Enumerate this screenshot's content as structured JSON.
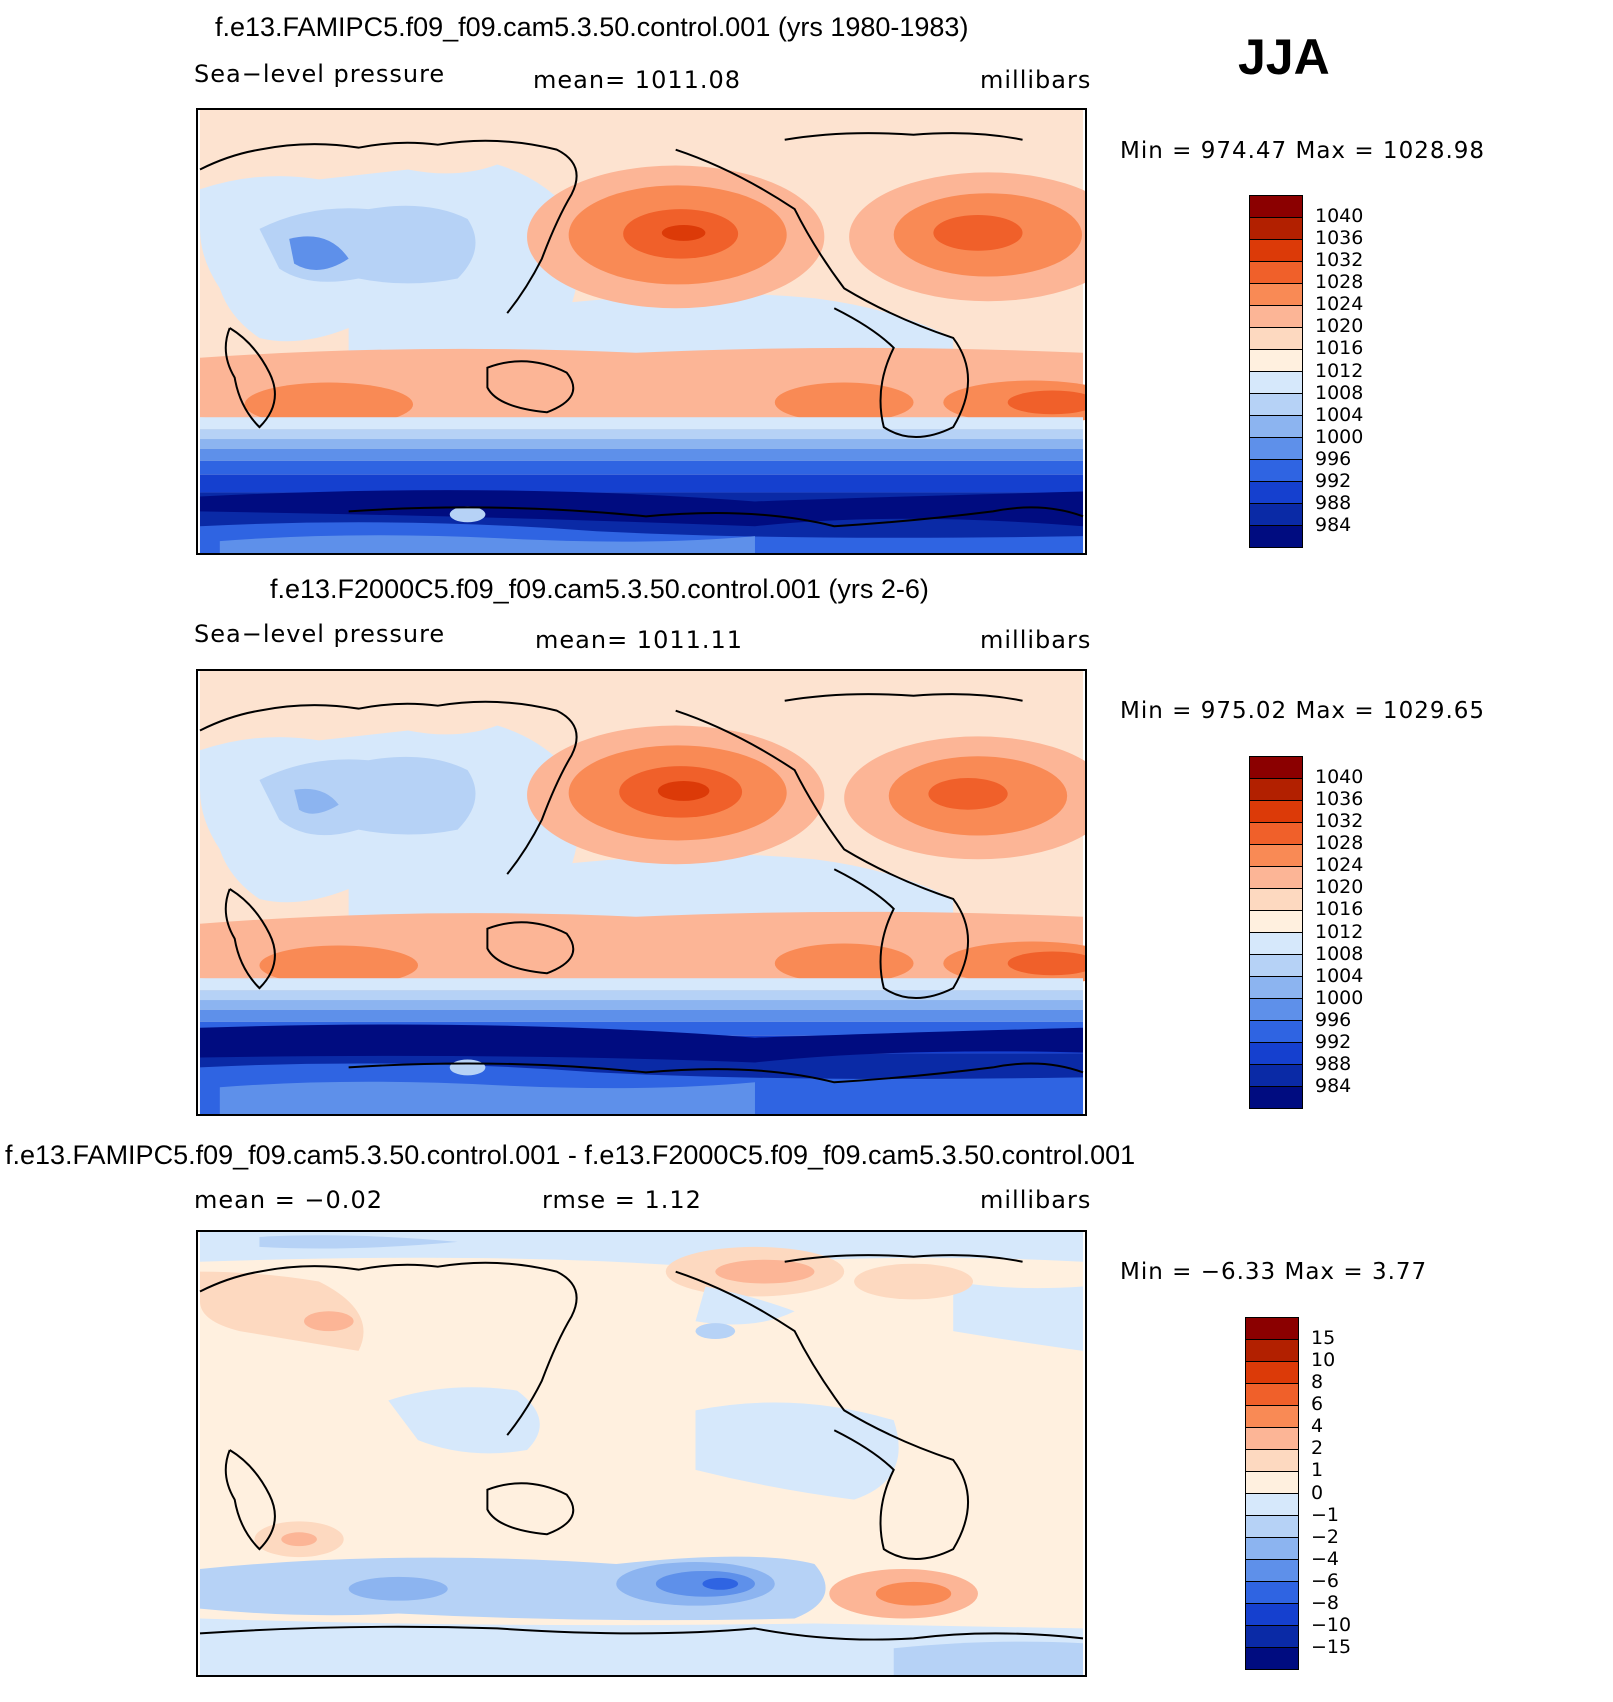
{
  "season": "JJA",
  "panels": [
    {
      "id": "panel-1",
      "title": "f.e13.FAMIPC5.f09_f09.cam5.3.50.control.001 (yrs 1980-1983)",
      "left_label": "Sea−level pressure",
      "center_label": "mean=  1011.08",
      "right_label": "millibars",
      "minmax": "Min  =  974.47  Max  =  1028.98",
      "colorbar": {
        "labels": [
          "1040",
          "1036",
          "1032",
          "1028",
          "1024",
          "1020",
          "1016",
          "1012",
          "1008",
          "1004",
          "1000",
          "996",
          "992",
          "988",
          "984"
        ],
        "colors": [
          "#8b0000",
          "#b22000",
          "#dc3a08",
          "#f0602a",
          "#f98a55",
          "#fcb596",
          "#fdd9c0",
          "#fff0df",
          "#d6e8fb",
          "#b6d2f6",
          "#8cb4f0",
          "#5e90ea",
          "#2f64e2",
          "#1540cf",
          "#0a2aa6",
          "#000c80"
        ]
      }
    },
    {
      "id": "panel-2",
      "title": "f.e13.F2000C5.f09_f09.cam5.3.50.control.001 (yrs 2-6)",
      "left_label": "Sea−level pressure",
      "center_label": "mean=  1011.11",
      "right_label": "millibars",
      "minmax": "Min  =  975.02  Max  =  1029.65",
      "colorbar": {
        "labels": [
          "1040",
          "1036",
          "1032",
          "1028",
          "1024",
          "1020",
          "1016",
          "1012",
          "1008",
          "1004",
          "1000",
          "996",
          "992",
          "988",
          "984"
        ],
        "colors": [
          "#8b0000",
          "#b22000",
          "#dc3a08",
          "#f0602a",
          "#f98a55",
          "#fcb596",
          "#fdd9c0",
          "#fff0df",
          "#d6e8fb",
          "#b6d2f6",
          "#8cb4f0",
          "#5e90ea",
          "#2f64e2",
          "#1540cf",
          "#0a2aa6",
          "#000c80"
        ]
      }
    },
    {
      "id": "panel-3",
      "title": "f.e13.FAMIPC5.f09_f09.cam5.3.50.control.001 - f.e13.F2000C5.f09_f09.cam5.3.50.control.001",
      "left_label": "mean  =    −0.02",
      "center_label": "rmse  =      1.12",
      "right_label": "millibars",
      "minmax": "Min  =    −6.33  Max  =      3.77",
      "colorbar": {
        "labels": [
          "15",
          "10",
          "8",
          "6",
          "4",
          "2",
          "1",
          "0",
          "−1",
          "−2",
          "−4",
          "−6",
          "−8",
          "−10",
          "−15"
        ],
        "colors": [
          "#8b0000",
          "#b22000",
          "#dc3a08",
          "#f0602a",
          "#f98a55",
          "#fcb596",
          "#fdd9c0",
          "#fff0df",
          "#d6e8fb",
          "#b6d2f6",
          "#8cb4f0",
          "#5e90ea",
          "#2f64e2",
          "#1540cf",
          "#0a2aa6",
          "#000c80"
        ]
      }
    }
  ]
}
